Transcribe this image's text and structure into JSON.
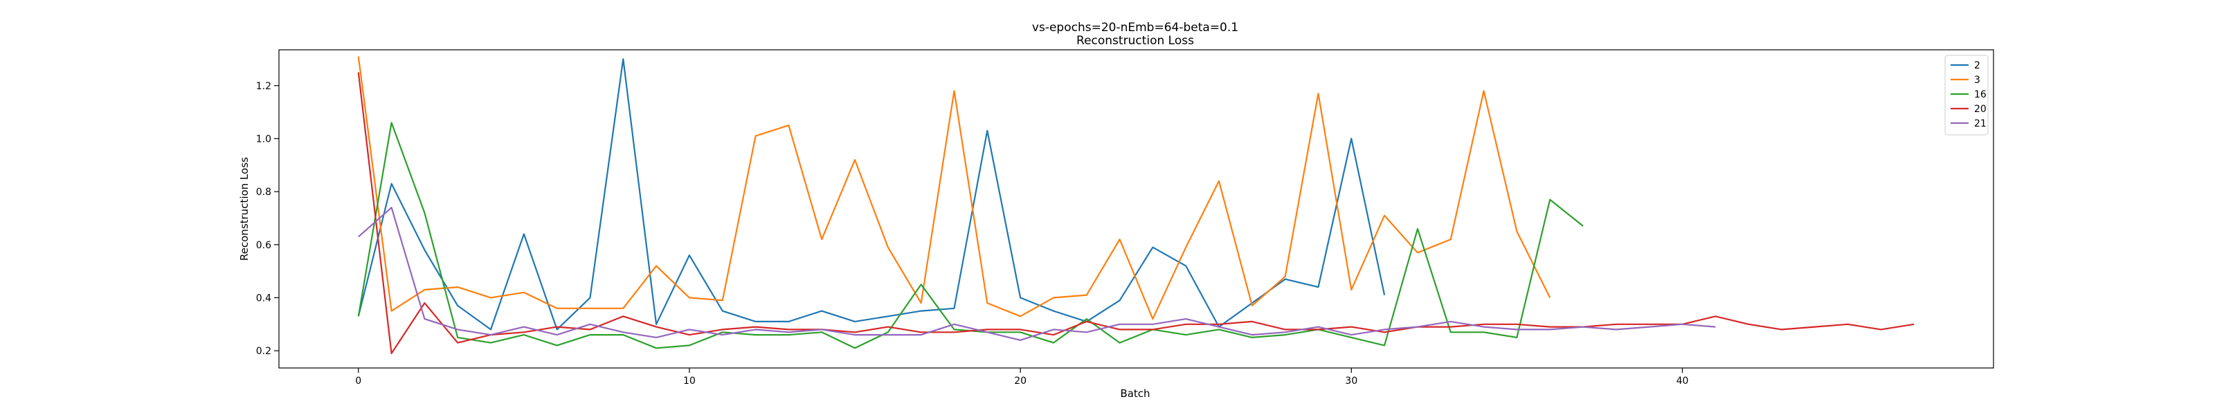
{
  "chart_data": {
    "type": "line",
    "title": "vs-epochs=20-nEmb=64-beta=0.1",
    "subtitle": "Reconstruction Loss",
    "xlabel": "Batch",
    "ylabel": "Reconstruction Loss",
    "xlim": [
      -2.4,
      49.4
    ],
    "ylim": [
      0.135,
      1.335
    ],
    "xticks": [
      0,
      10,
      20,
      30,
      40
    ],
    "yticks": [
      0.2,
      0.4,
      0.6,
      0.8,
      1.0,
      1.2
    ],
    "ytick_labels": [
      "0.2",
      "0.4",
      "0.6",
      "0.8",
      "1.0",
      "1.2"
    ],
    "grid": false,
    "legend_position": "top-right",
    "series": [
      {
        "name": "2",
        "color": "#1f77b4",
        "values": [
          0.33,
          0.83,
          0.58,
          0.37,
          0.28,
          0.64,
          0.28,
          0.4,
          1.3,
          0.3,
          0.56,
          0.35,
          0.31,
          0.31,
          0.35,
          0.31,
          0.33,
          0.35,
          0.36,
          1.03,
          0.4,
          0.35,
          0.31,
          0.39,
          0.59,
          0.52,
          0.29,
          0.38,
          0.47,
          0.44,
          1.0,
          0.41
        ]
      },
      {
        "name": "3",
        "color": "#ff7f0e",
        "values": [
          1.31,
          0.35,
          0.43,
          0.44,
          0.4,
          0.42,
          0.36,
          0.36,
          0.36,
          0.52,
          0.4,
          0.39,
          1.01,
          1.05,
          0.62,
          0.92,
          0.59,
          0.38,
          1.18,
          0.38,
          0.33,
          0.4,
          0.41,
          0.62,
          0.32,
          0.59,
          0.84,
          0.37,
          0.48,
          1.17,
          0.43,
          0.71,
          0.57,
          0.62,
          1.18,
          0.65,
          0.4
        ]
      },
      {
        "name": "16",
        "color": "#2ca02c",
        "values": [
          0.33,
          1.06,
          0.72,
          0.25,
          0.23,
          0.26,
          0.22,
          0.26,
          0.26,
          0.21,
          0.22,
          0.27,
          0.26,
          0.26,
          0.27,
          0.21,
          0.27,
          0.45,
          0.28,
          0.27,
          0.27,
          0.23,
          0.32,
          0.23,
          0.28,
          0.26,
          0.28,
          0.25,
          0.26,
          0.28,
          0.25,
          0.22,
          0.66,
          0.27,
          0.27,
          0.25,
          0.77,
          0.67
        ]
      },
      {
        "name": "20",
        "color": "#d62728",
        "values": [
          1.25,
          0.19,
          0.38,
          0.23,
          0.26,
          0.27,
          0.29,
          0.28,
          0.33,
          0.29,
          0.26,
          0.28,
          0.29,
          0.28,
          0.28,
          0.27,
          0.29,
          0.27,
          0.27,
          0.28,
          0.28,
          0.26,
          0.31,
          0.28,
          0.28,
          0.3,
          0.3,
          0.31,
          0.28,
          0.28,
          0.29,
          0.27,
          0.29,
          0.29,
          0.3,
          0.3,
          0.29,
          0.29,
          0.3,
          0.3,
          0.3,
          0.33,
          0.3,
          0.28,
          0.29,
          0.3,
          0.28,
          0.3
        ]
      },
      {
        "name": "21",
        "color": "#9467bd",
        "values": [
          0.63,
          0.74,
          0.32,
          0.28,
          0.26,
          0.29,
          0.26,
          0.3,
          0.27,
          0.25,
          0.28,
          0.26,
          0.28,
          0.27,
          0.28,
          0.26,
          0.26,
          0.26,
          0.3,
          0.27,
          0.24,
          0.28,
          0.27,
          0.3,
          0.3,
          0.32,
          0.29,
          0.26,
          0.27,
          0.29,
          0.26,
          0.28,
          0.29,
          0.31,
          0.29,
          0.28,
          0.28,
          0.29,
          0.28,
          0.29,
          0.3,
          0.29
        ]
      }
    ]
  }
}
